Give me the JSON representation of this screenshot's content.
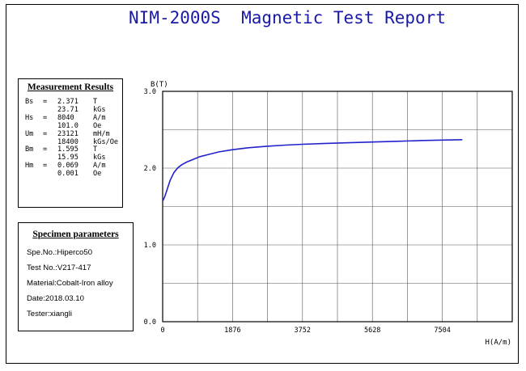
{
  "report_title": "NIM-2000S  Magnetic Test Report",
  "measurement": {
    "title": "Measurement Results",
    "rows": [
      {
        "sym": "Bs",
        "eq": "=",
        "val": "2.371",
        "unit": "T"
      },
      {
        "sym": "",
        "eq": "",
        "val": "23.71",
        "unit": "kGs"
      },
      {
        "sym": "Hs",
        "eq": "=",
        "val": "8040",
        "unit": "A/m"
      },
      {
        "sym": "",
        "eq": "",
        "val": "101.0",
        "unit": "Oe"
      },
      {
        "sym": "Um",
        "eq": "=",
        "val": "23121",
        "unit": "mH/m"
      },
      {
        "sym": "",
        "eq": "",
        "val": "18400",
        "unit": "kGs/Oe"
      },
      {
        "sym": "Bm",
        "eq": "=",
        "val": "1.595",
        "unit": "T"
      },
      {
        "sym": "",
        "eq": "",
        "val": "15.95",
        "unit": "kGs"
      },
      {
        "sym": "Hm",
        "eq": "=",
        "val": "0.069",
        "unit": "A/m"
      },
      {
        "sym": "",
        "eq": "",
        "val": "0.001",
        "unit": "Oe"
      }
    ]
  },
  "specimen": {
    "title": "Specimen parameters",
    "lines": [
      "Spe.No.:Hiperco50",
      "Test No.:V217-417",
      "Material:Cobalt-Iron alloy",
      "Date:2018.03.10",
      "Tester:xiangli"
    ]
  },
  "chart_data": {
    "type": "line",
    "xlabel": "H(A/m)",
    "ylabel": "B(T)",
    "xlim": [
      0,
      9380
    ],
    "ylim": [
      0,
      3.0
    ],
    "x_ticks": [
      0,
      1876,
      3752,
      5628,
      7504
    ],
    "x_tick_labels": [
      "0",
      "1876",
      "3752",
      "5628",
      "7504"
    ],
    "y_ticks": [
      0,
      1.0,
      2.0,
      3.0
    ],
    "y_tick_labels": [
      "0.0",
      "1.0",
      "2.0",
      "3.0"
    ],
    "grid": true,
    "line_color": "#2222cc",
    "series": [
      {
        "x": [
          0,
          50,
          120,
          200,
          300,
          400,
          500,
          650,
          800,
          1000,
          1250,
          1500,
          1876,
          2300,
          2800,
          3300,
          3752,
          4300,
          5000,
          5628,
          6300,
          7000,
          7504,
          8040
        ],
        "y": [
          1.57,
          1.62,
          1.72,
          1.84,
          1.94,
          2.0,
          2.04,
          2.08,
          2.11,
          2.15,
          2.18,
          2.21,
          2.24,
          2.265,
          2.285,
          2.3,
          2.31,
          2.32,
          2.33,
          2.34,
          2.35,
          2.36,
          2.365,
          2.371
        ]
      }
    ]
  }
}
